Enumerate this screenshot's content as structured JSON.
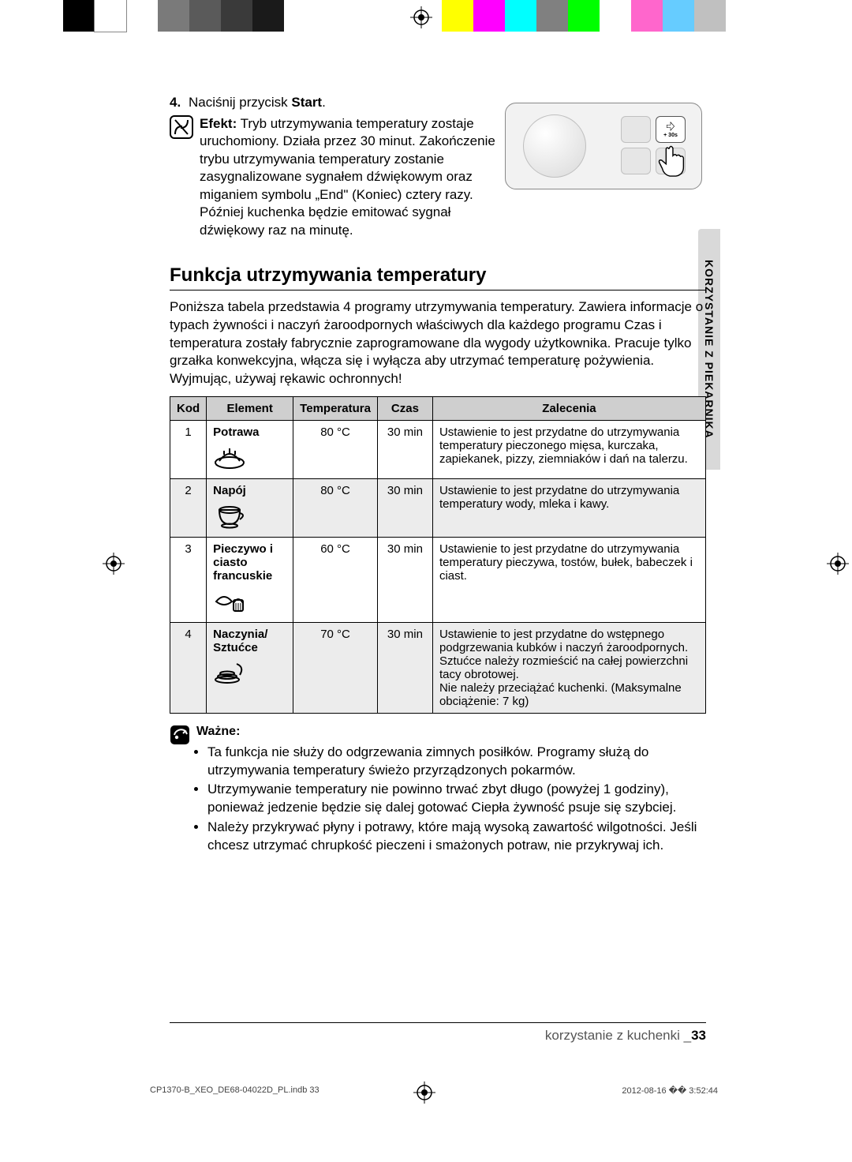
{
  "reg_colors": [
    "#000000",
    "#ffffff",
    "#7a7a7a",
    "#5a5a5a",
    "#3a3a3a",
    "#1a1a1a",
    "#ffff00",
    "#ff00ff",
    "#00ffff",
    "#808080",
    "#00ff00",
    "#ff66cc",
    "#66ccff",
    "#c0c0c0"
  ],
  "step": {
    "num": "4.",
    "text_a": "Naciśnij przycisk ",
    "text_b": "Start",
    "text_c": "."
  },
  "note": {
    "lead": "Efekt:",
    "body": " Tryb utrzymywania temperatury zostaje uruchomiony. Działa przez 30 minut. Zakończenie trybu utrzymywania temperatury zostanie zasygnalizowane sygnałem dźwiękowym oraz miganiem symbolu „End\" (Koniec) cztery razy.",
    "body2": "Później kuchenka będzie emitować sygnał dźwiękowy raz na minutę."
  },
  "panel_btn_label": "+ 30s",
  "section_title": "Funkcja utrzymywania temperatury",
  "section_para1": "Poniższa tabela przedstawia 4 programy utrzymywania temperatury. Zawiera informacje o typach żywności i naczyń żaroodpornych właściwych dla każdego programu Czas i temperatura zostały fabrycznie zaprogramowane dla wygody użytkownika. Pracuje tylko grzałka konwekcyjna, włącza się i wyłącza aby utrzymać temperaturę pożywienia.",
  "section_para2": "Wyjmując, używaj rękawic ochronnych!",
  "table": {
    "headers": {
      "code": "Kod",
      "elem": "Element",
      "temp": "Temperatura",
      "time": "Czas",
      "rec": "Zalecenia"
    },
    "rows": [
      {
        "code": "1",
        "elem": "Potrawa",
        "temp": "80 °C",
        "time": "30 min",
        "rec": "Ustawienie to jest przydatne do utrzymywania temperatury pieczonego mięsa, kurczaka, zapiekanek, pizzy, ziemniaków i dań na talerzu."
      },
      {
        "code": "2",
        "elem": "Napój",
        "temp": "80 °C",
        "time": "30 min",
        "rec": "Ustawienie to jest przydatne do utrzymywania temperatury wody, mleka i kawy."
      },
      {
        "code": "3",
        "elem": "Pieczywo i ciasto francuskie",
        "temp": "60 °C",
        "time": "30 min",
        "rec": "Ustawienie to jest przydatne do utrzymywania temperatury pieczywa, tostów, bułek, babeczek i ciast."
      },
      {
        "code": "4",
        "elem": "Naczynia/ Sztućce",
        "temp": "70 °C",
        "time": "30 min",
        "rec": "Ustawienie to jest przydatne do wstępnego podgrzewania kubków i naczyń żaroodpornych. Sztućce należy rozmieścić na całej powierzchni tacy obrotowej.\nNie należy przeciążać kuchenki. (Maksymalne obciążenie: 7 kg)"
      }
    ]
  },
  "important": {
    "title": "Ważne:",
    "items": [
      "Ta funkcja nie służy do odgrzewania zimnych posiłków. Programy służą do utrzymywania temperatury świeżo przyrządzonych pokarmów.",
      "Utrzymywanie temperatury nie powinno trwać zbyt długo (powyżej 1 godziny), ponieważ jedzenie będzie się dalej gotować Ciepła żywność psuje się szybciej.",
      "Należy przykrywać płyny i potrawy, które mają wysoką zawartość wilgotności. Jeśli chcesz utrzymać chrupkość pieczeni i smażonych potraw, nie przykrywaj ich."
    ]
  },
  "side_tab": "KORZYSTANIE Z PIEKARNIKA",
  "footer": {
    "text": "korzystanie z kuchenki _",
    "page": "33"
  },
  "print": {
    "file": "CP1370-B_XEO_DE68-04022D_PL.indb   33",
    "stamp": "2012-08-16   �� 3:52:44"
  }
}
